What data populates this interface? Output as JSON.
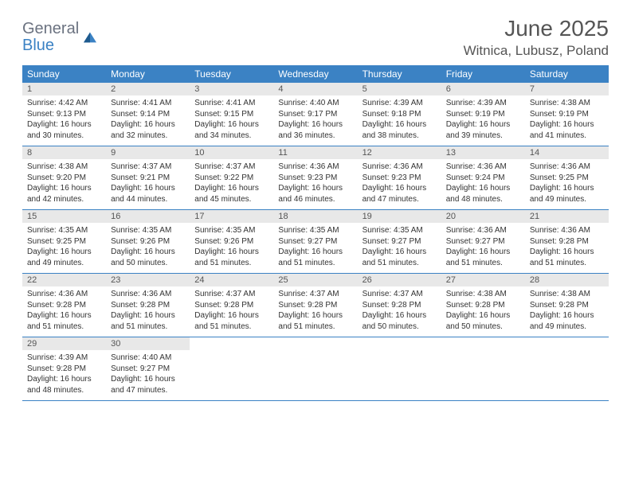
{
  "logo": {
    "general": "General",
    "blue": "Blue"
  },
  "header": {
    "month": "June 2025",
    "location": "Witnica, Lubusz, Poland"
  },
  "colors": {
    "header_bg": "#3b82c4",
    "header_text": "#ffffff",
    "daynum_bg": "#e8e8e8",
    "border": "#3b82c4",
    "text": "#333333",
    "title": "#555555"
  },
  "weekdays": [
    "Sunday",
    "Monday",
    "Tuesday",
    "Wednesday",
    "Thursday",
    "Friday",
    "Saturday"
  ],
  "weeks": [
    [
      {
        "n": "1",
        "sunrise": "Sunrise: 4:42 AM",
        "sunset": "Sunset: 9:13 PM",
        "daylight": "Daylight: 16 hours and 30 minutes."
      },
      {
        "n": "2",
        "sunrise": "Sunrise: 4:41 AM",
        "sunset": "Sunset: 9:14 PM",
        "daylight": "Daylight: 16 hours and 32 minutes."
      },
      {
        "n": "3",
        "sunrise": "Sunrise: 4:41 AM",
        "sunset": "Sunset: 9:15 PM",
        "daylight": "Daylight: 16 hours and 34 minutes."
      },
      {
        "n": "4",
        "sunrise": "Sunrise: 4:40 AM",
        "sunset": "Sunset: 9:17 PM",
        "daylight": "Daylight: 16 hours and 36 minutes."
      },
      {
        "n": "5",
        "sunrise": "Sunrise: 4:39 AM",
        "sunset": "Sunset: 9:18 PM",
        "daylight": "Daylight: 16 hours and 38 minutes."
      },
      {
        "n": "6",
        "sunrise": "Sunrise: 4:39 AM",
        "sunset": "Sunset: 9:19 PM",
        "daylight": "Daylight: 16 hours and 39 minutes."
      },
      {
        "n": "7",
        "sunrise": "Sunrise: 4:38 AM",
        "sunset": "Sunset: 9:19 PM",
        "daylight": "Daylight: 16 hours and 41 minutes."
      }
    ],
    [
      {
        "n": "8",
        "sunrise": "Sunrise: 4:38 AM",
        "sunset": "Sunset: 9:20 PM",
        "daylight": "Daylight: 16 hours and 42 minutes."
      },
      {
        "n": "9",
        "sunrise": "Sunrise: 4:37 AM",
        "sunset": "Sunset: 9:21 PM",
        "daylight": "Daylight: 16 hours and 44 minutes."
      },
      {
        "n": "10",
        "sunrise": "Sunrise: 4:37 AM",
        "sunset": "Sunset: 9:22 PM",
        "daylight": "Daylight: 16 hours and 45 minutes."
      },
      {
        "n": "11",
        "sunrise": "Sunrise: 4:36 AM",
        "sunset": "Sunset: 9:23 PM",
        "daylight": "Daylight: 16 hours and 46 minutes."
      },
      {
        "n": "12",
        "sunrise": "Sunrise: 4:36 AM",
        "sunset": "Sunset: 9:23 PM",
        "daylight": "Daylight: 16 hours and 47 minutes."
      },
      {
        "n": "13",
        "sunrise": "Sunrise: 4:36 AM",
        "sunset": "Sunset: 9:24 PM",
        "daylight": "Daylight: 16 hours and 48 minutes."
      },
      {
        "n": "14",
        "sunrise": "Sunrise: 4:36 AM",
        "sunset": "Sunset: 9:25 PM",
        "daylight": "Daylight: 16 hours and 49 minutes."
      }
    ],
    [
      {
        "n": "15",
        "sunrise": "Sunrise: 4:35 AM",
        "sunset": "Sunset: 9:25 PM",
        "daylight": "Daylight: 16 hours and 49 minutes."
      },
      {
        "n": "16",
        "sunrise": "Sunrise: 4:35 AM",
        "sunset": "Sunset: 9:26 PM",
        "daylight": "Daylight: 16 hours and 50 minutes."
      },
      {
        "n": "17",
        "sunrise": "Sunrise: 4:35 AM",
        "sunset": "Sunset: 9:26 PM",
        "daylight": "Daylight: 16 hours and 51 minutes."
      },
      {
        "n": "18",
        "sunrise": "Sunrise: 4:35 AM",
        "sunset": "Sunset: 9:27 PM",
        "daylight": "Daylight: 16 hours and 51 minutes."
      },
      {
        "n": "19",
        "sunrise": "Sunrise: 4:35 AM",
        "sunset": "Sunset: 9:27 PM",
        "daylight": "Daylight: 16 hours and 51 minutes."
      },
      {
        "n": "20",
        "sunrise": "Sunrise: 4:36 AM",
        "sunset": "Sunset: 9:27 PM",
        "daylight": "Daylight: 16 hours and 51 minutes."
      },
      {
        "n": "21",
        "sunrise": "Sunrise: 4:36 AM",
        "sunset": "Sunset: 9:28 PM",
        "daylight": "Daylight: 16 hours and 51 minutes."
      }
    ],
    [
      {
        "n": "22",
        "sunrise": "Sunrise: 4:36 AM",
        "sunset": "Sunset: 9:28 PM",
        "daylight": "Daylight: 16 hours and 51 minutes."
      },
      {
        "n": "23",
        "sunrise": "Sunrise: 4:36 AM",
        "sunset": "Sunset: 9:28 PM",
        "daylight": "Daylight: 16 hours and 51 minutes."
      },
      {
        "n": "24",
        "sunrise": "Sunrise: 4:37 AM",
        "sunset": "Sunset: 9:28 PM",
        "daylight": "Daylight: 16 hours and 51 minutes."
      },
      {
        "n": "25",
        "sunrise": "Sunrise: 4:37 AM",
        "sunset": "Sunset: 9:28 PM",
        "daylight": "Daylight: 16 hours and 51 minutes."
      },
      {
        "n": "26",
        "sunrise": "Sunrise: 4:37 AM",
        "sunset": "Sunset: 9:28 PM",
        "daylight": "Daylight: 16 hours and 50 minutes."
      },
      {
        "n": "27",
        "sunrise": "Sunrise: 4:38 AM",
        "sunset": "Sunset: 9:28 PM",
        "daylight": "Daylight: 16 hours and 50 minutes."
      },
      {
        "n": "28",
        "sunrise": "Sunrise: 4:38 AM",
        "sunset": "Sunset: 9:28 PM",
        "daylight": "Daylight: 16 hours and 49 minutes."
      }
    ],
    [
      {
        "n": "29",
        "sunrise": "Sunrise: 4:39 AM",
        "sunset": "Sunset: 9:28 PM",
        "daylight": "Daylight: 16 hours and 48 minutes."
      },
      {
        "n": "30",
        "sunrise": "Sunrise: 4:40 AM",
        "sunset": "Sunset: 9:27 PM",
        "daylight": "Daylight: 16 hours and 47 minutes."
      },
      null,
      null,
      null,
      null,
      null
    ]
  ]
}
